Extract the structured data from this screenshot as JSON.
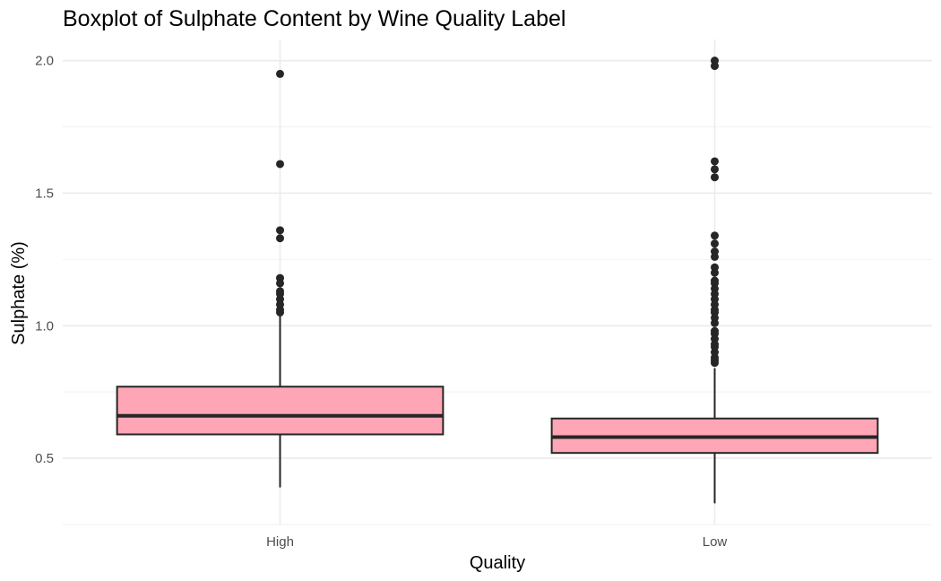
{
  "chart_data": {
    "type": "boxplot",
    "title": "Boxplot of Sulphate Content by Wine Quality Label",
    "xlabel": "Quality",
    "ylabel": "Sulphate (%)",
    "ylim": [
      0.25,
      2.08
    ],
    "y_ticks": [
      {
        "value": 0.5,
        "label": "0.5"
      },
      {
        "value": 1.0,
        "label": "1.0"
      },
      {
        "value": 1.5,
        "label": "1.5"
      },
      {
        "value": 2.0,
        "label": "2.0"
      }
    ],
    "grid": true,
    "box_fill": "#ffa6b6",
    "box_stroke": "#262626",
    "categories": [
      "High",
      "Low"
    ],
    "boxes": [
      {
        "category": "High",
        "whisker_low": 0.39,
        "q1": 0.59,
        "median": 0.66,
        "q3": 0.77,
        "whisker_high": 1.04,
        "outliers": [
          1.05,
          1.06,
          1.08,
          1.1,
          1.12,
          1.13,
          1.16,
          1.18,
          1.33,
          1.36,
          1.61,
          1.95
        ]
      },
      {
        "category": "Low",
        "whisker_low": 0.33,
        "q1": 0.52,
        "median": 0.58,
        "q3": 0.65,
        "whisker_high": 0.84,
        "outliers": [
          0.86,
          0.87,
          0.88,
          0.9,
          0.92,
          0.93,
          0.95,
          0.97,
          0.98,
          1.01,
          1.03,
          1.05,
          1.06,
          1.08,
          1.1,
          1.12,
          1.14,
          1.16,
          1.17,
          1.2,
          1.22,
          1.26,
          1.28,
          1.31,
          1.34,
          1.56,
          1.59,
          1.62,
          1.98,
          2.0
        ]
      }
    ]
  }
}
